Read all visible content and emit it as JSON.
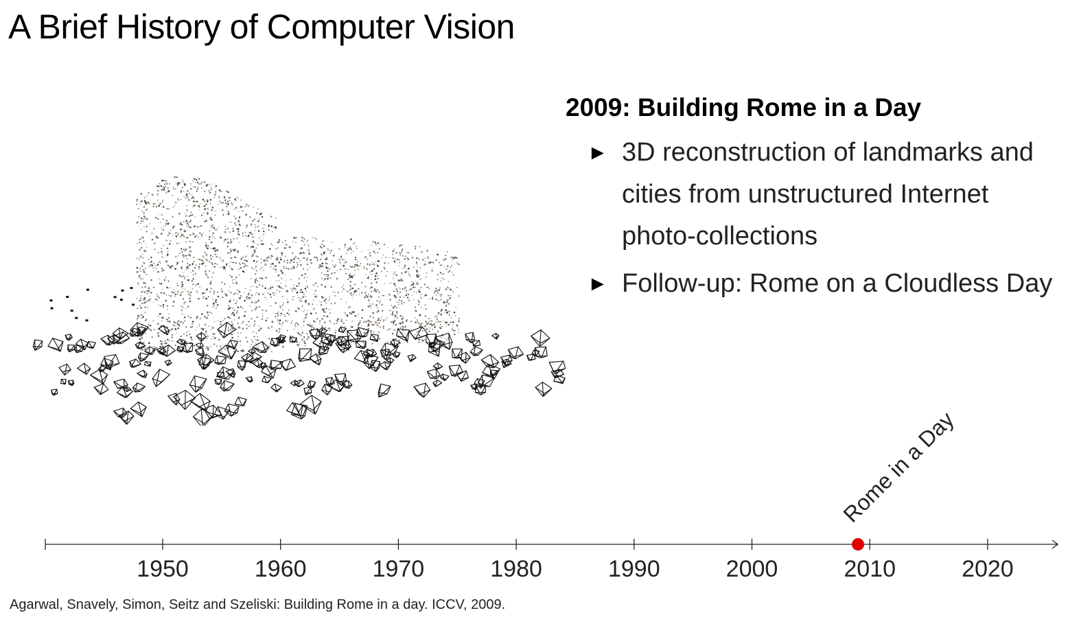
{
  "title": "A Brief History of Computer Vision",
  "section": {
    "heading": "2009: Building Rome in a Day",
    "bullets": [
      "3D reconstruction of landmarks and cities from unstructured Internet photo-collections",
      "Follow-up: Rome on a Cloudless Day"
    ]
  },
  "timeline": {
    "ticks": [
      "1950",
      "1960",
      "1970",
      "1980",
      "1990",
      "2000",
      "2010",
      "2020"
    ],
    "range": [
      1940,
      2026
    ],
    "event": {
      "year": 2009,
      "label": "Rome in a Day",
      "color": "#e00000"
    }
  },
  "citation": "Agarwal, Snavely, Simon, Seitz and Szeliski: Building Rome in a day. ICCV, 2009."
}
